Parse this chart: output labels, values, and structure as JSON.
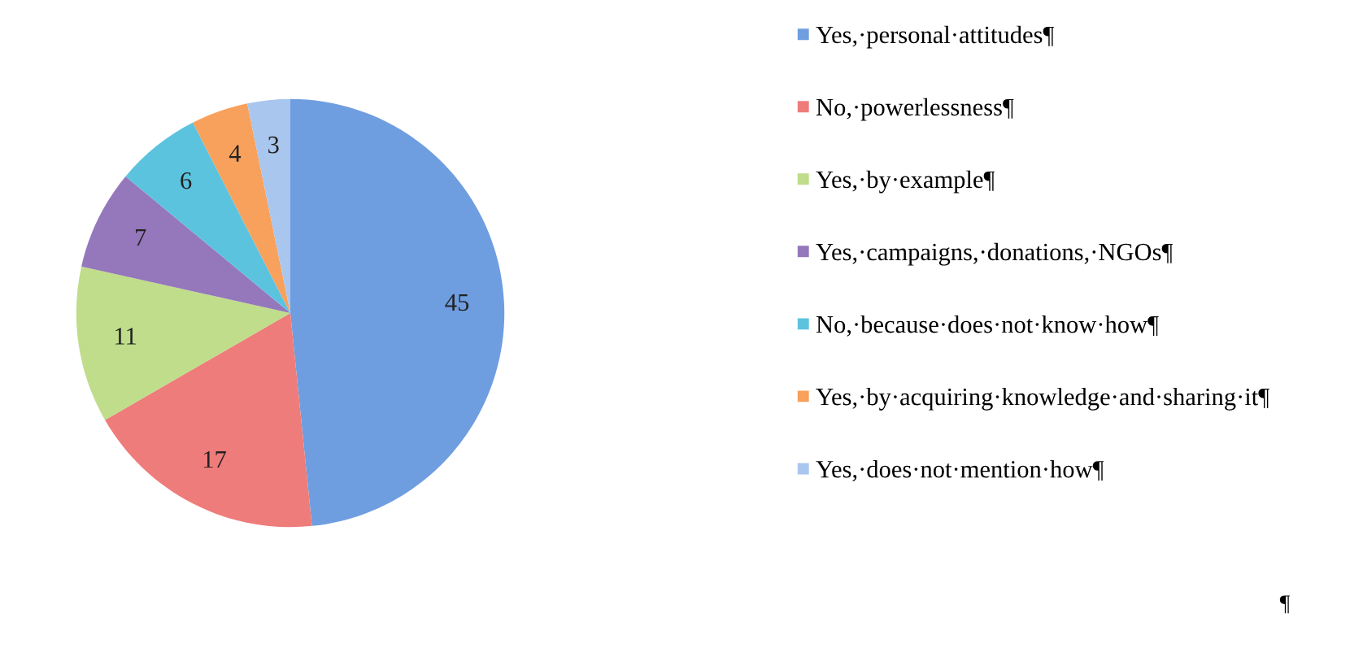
{
  "chart_data": {
    "type": "pie",
    "categories": [
      "Yes,·personal·attitudes¶",
      "No,·powerlessness¶",
      "Yes,·by·example¶",
      "Yes,·campaigns,·donations,·NGOs¶",
      "No,·because·does·not·know·how¶",
      "Yes,·by·acquiring·knowledge·and·sharing·it¶",
      "Yes,·does·not·mention·how¶"
    ],
    "values": [
      45,
      17,
      11,
      7,
      6,
      4,
      3
    ],
    "colors": [
      "#6f9ee0",
      "#ee7c7a",
      "#bfdd8a",
      "#9577bb",
      "#5cc3df",
      "#f7a15c",
      "#a9c6ee"
    ],
    "data_labels": true,
    "legend": "right",
    "annotations": [
      "¶"
    ]
  }
}
